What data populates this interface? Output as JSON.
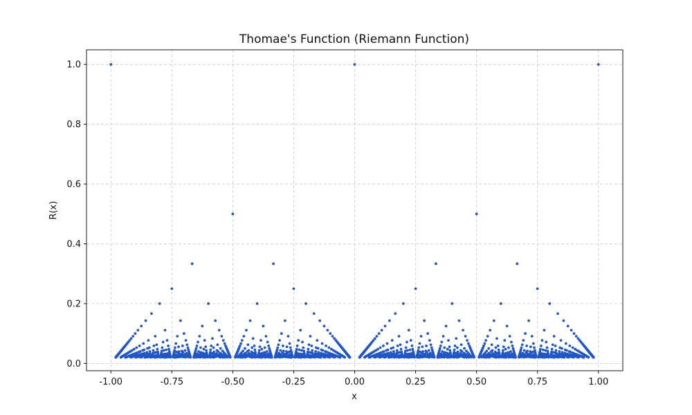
{
  "chart_data": {
    "type": "scatter",
    "title": "Thomae's Function (Riemann Function)",
    "xlabel": "x",
    "ylabel": "R(x)",
    "xlim": [
      -1.1,
      1.1
    ],
    "ylim": [
      -0.0245,
      1.049
    ],
    "xticks": [
      -1.0,
      -0.75,
      -0.5,
      -0.25,
      0.0,
      0.25,
      0.5,
      0.75,
      1.0
    ],
    "xtick_labels": [
      "-1.00",
      "-0.75",
      "-0.50",
      "-0.25",
      "0.00",
      "0.25",
      "0.50",
      "0.75",
      "1.00"
    ],
    "yticks": [
      0.0,
      0.2,
      0.4,
      0.6,
      0.8,
      1.0
    ],
    "ytick_labels": [
      "0.0",
      "0.2",
      "0.4",
      "0.6",
      "0.8",
      "1.0"
    ],
    "grid": true,
    "marker_color": "#1f56c9",
    "series": [
      {
        "rule": "R(p/q) = 1/q for reduced fractions p/q in [-1, 1], q from 1 to 50",
        "x_min": -1,
        "x_max": 1,
        "max_denominator": 50
      }
    ]
  }
}
